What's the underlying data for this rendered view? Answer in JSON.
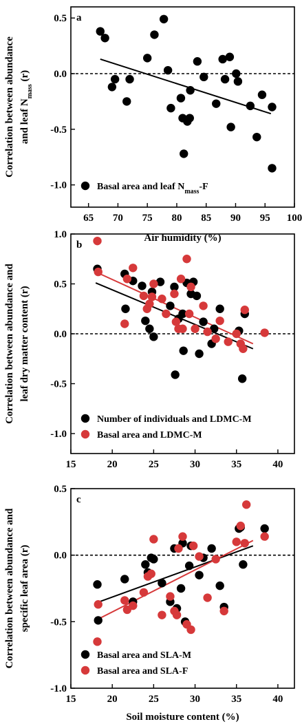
{
  "chart_data": [
    {
      "type": "scatter",
      "panel_label": "a",
      "xlabel": "Air humidity (%)",
      "ylabel_line1": "Correlation between abundance",
      "ylabel_line2_main": "and leaf N",
      "ylabel_line2_sub": "mass",
      "ylabel_line2_tail": " (r)",
      "xlim": [
        62,
        100
      ],
      "ylim": [
        -1.2,
        0.6
      ],
      "xticks": [
        65,
        70,
        75,
        80,
        85,
        90,
        95,
        100
      ],
      "yticks": [
        0.5,
        0.0,
        -0.5,
        -1.0
      ],
      "ytick_labels": [
        "0.5",
        "0.0",
        "-0.5",
        "-1.0"
      ],
      "reference_line_y": 0,
      "legend_position": "bottom-left",
      "series": [
        {
          "name_main": "Basal area and leaf N",
          "name_sub": "mass",
          "name_tail": "-F",
          "color": "#000000",
          "points": [
            [
              67,
              0.38
            ],
            [
              67.8,
              0.32
            ],
            [
              69,
              -0.12
            ],
            [
              69.5,
              -0.05
            ],
            [
              71.5,
              -0.25
            ],
            [
              72,
              -0.05
            ],
            [
              75,
              0.14
            ],
            [
              76.2,
              0.35
            ],
            [
              77.8,
              0.49
            ],
            [
              78.5,
              0.03
            ],
            [
              79,
              -0.31
            ],
            [
              80.7,
              -0.22
            ],
            [
              81,
              -0.4
            ],
            [
              81.2,
              -0.72
            ],
            [
              81.8,
              -0.43
            ],
            [
              82.2,
              -0.4
            ],
            [
              82.3,
              -0.15
            ],
            [
              83.5,
              0.11
            ],
            [
              84.6,
              -0.03
            ],
            [
              86.7,
              -0.27
            ],
            [
              87.8,
              0.13
            ],
            [
              88.2,
              -0.05
            ],
            [
              89,
              0.15
            ],
            [
              89.2,
              -0.48
            ],
            [
              90.1,
              0.0
            ],
            [
              90.4,
              -0.07
            ],
            [
              92.5,
              -0.29
            ],
            [
              93.6,
              -0.57
            ],
            [
              94.5,
              -0.19
            ],
            [
              96.2,
              -0.3
            ],
            [
              96.2,
              -0.85
            ]
          ],
          "fit": [
            [
              67,
              0.13
            ],
            [
              96,
              -0.36
            ]
          ]
        }
      ]
    },
    {
      "type": "scatter",
      "panel_label": "b",
      "xlabel": "",
      "ylabel_line1": "Correlation between abundance and",
      "ylabel_line2": "leaf dry matter content (r)",
      "xlim": [
        15,
        42
      ],
      "ylim": [
        -1.2,
        1.0
      ],
      "xticks": [
        15,
        20,
        25,
        30,
        35,
        40
      ],
      "yticks": [
        1.0,
        0.5,
        0.0,
        -0.5,
        -1.0
      ],
      "ytick_labels": [
        "1.0",
        "0.5",
        "0.0",
        "-0.5",
        "-1.0"
      ],
      "reference_line_y": 0,
      "legend_position": "bottom-left",
      "series": [
        {
          "name": "Number of individuals and LDMC-M",
          "color": "#000000",
          "points": [
            [
              18.2,
              0.65
            ],
            [
              21.5,
              0.6
            ],
            [
              21.6,
              0.25
            ],
            [
              22.5,
              0.53
            ],
            [
              23.6,
              0.48
            ],
            [
              24.0,
              0.13
            ],
            [
              24.5,
              0.05
            ],
            [
              24.8,
              0.42
            ],
            [
              25.0,
              -0.03
            ],
            [
              25.8,
              0.52
            ],
            [
              27.0,
              0.28
            ],
            [
              27.5,
              0.47
            ],
            [
              27.6,
              -0.41
            ],
            [
              28.0,
              0.15
            ],
            [
              28.5,
              0.2
            ],
            [
              28.6,
              -0.17
            ],
            [
              29.0,
              0.51
            ],
            [
              29.5,
              0.4
            ],
            [
              29.8,
              0.52
            ],
            [
              30.2,
              0.38
            ],
            [
              30.5,
              -0.2
            ],
            [
              31.0,
              0.12
            ],
            [
              32.0,
              -0.1
            ],
            [
              32.3,
              0.05
            ],
            [
              33.0,
              0.25
            ],
            [
              35.3,
              0.03
            ],
            [
              35.7,
              -0.45
            ],
            [
              36.0,
              0.2
            ]
          ],
          "fit": [
            [
              18,
              0.51
            ],
            [
              37,
              -0.15
            ]
          ]
        },
        {
          "name": "Basal area and LDMC-M",
          "color": "#d6393a",
          "points": [
            [
              18.2,
              0.93
            ],
            [
              18.3,
              0.62
            ],
            [
              21.5,
              0.1
            ],
            [
              21.8,
              0.55
            ],
            [
              22.5,
              0.66
            ],
            [
              23.8,
              0.38
            ],
            [
              24.2,
              0.25
            ],
            [
              24.5,
              0.3
            ],
            [
              24.8,
              0.37
            ],
            [
              25.0,
              0.5
            ],
            [
              26.0,
              0.35
            ],
            [
              26.5,
              0.2
            ],
            [
              27.5,
              0.4
            ],
            [
              27.7,
              0.12
            ],
            [
              28.0,
              0.05
            ],
            [
              28.3,
              0.55
            ],
            [
              28.5,
              0.05
            ],
            [
              29.0,
              0.75
            ],
            [
              29.3,
              0.2
            ],
            [
              29.5,
              0.47
            ],
            [
              30.0,
              0.05
            ],
            [
              31.0,
              0.28
            ],
            [
              31.5,
              0.02
            ],
            [
              32.5,
              -0.05
            ],
            [
              33.0,
              0.13
            ],
            [
              34.0,
              -0.08
            ],
            [
              35.0,
              0.0
            ],
            [
              35.5,
              -0.1
            ],
            [
              35.8,
              -0.15
            ],
            [
              36.0,
              0.24
            ],
            [
              38.4,
              0.01
            ]
          ],
          "fit": [
            [
              18,
              0.62
            ],
            [
              37,
              -0.1
            ]
          ]
        }
      ]
    },
    {
      "type": "scatter",
      "panel_label": "c",
      "xlabel": "Soil moisture content (%)",
      "ylabel_line1": "Correlation between abundance and",
      "ylabel_line2": "specific leaf area (r)",
      "xlim": [
        15,
        42
      ],
      "ylim": [
        -1.0,
        0.5
      ],
      "xticks": [
        15,
        20,
        25,
        30,
        35,
        40
      ],
      "yticks": [
        0.5,
        0.0,
        -0.5,
        -1.0
      ],
      "ytick_labels": [
        "0.5",
        "0.0",
        "-0.5",
        "-1.0"
      ],
      "reference_line_y": 0,
      "legend_position": "bottom-left",
      "series": [
        {
          "name": "Basal area and SLA-M",
          "color": "#000000",
          "points": [
            [
              18.2,
              -0.22
            ],
            [
              18.3,
              -0.49
            ],
            [
              21.5,
              -0.18
            ],
            [
              22.5,
              -0.35
            ],
            [
              24.0,
              -0.07
            ],
            [
              24.3,
              -0.13
            ],
            [
              24.7,
              -0.02
            ],
            [
              25.0,
              -0.03
            ],
            [
              26.0,
              -0.21
            ],
            [
              27.0,
              -0.35
            ],
            [
              27.5,
              0.05
            ],
            [
              27.8,
              -0.4
            ],
            [
              28.3,
              -0.25
            ],
            [
              28.5,
              0.09
            ],
            [
              28.8,
              -0.5
            ],
            [
              29.3,
              -0.08
            ],
            [
              29.5,
              0.07
            ],
            [
              30.5,
              -0.15
            ],
            [
              31.0,
              -0.02
            ],
            [
              32.0,
              0.05
            ],
            [
              33.0,
              -0.23
            ],
            [
              33.5,
              -0.39
            ],
            [
              35.3,
              0.2
            ],
            [
              35.5,
              0.21
            ],
            [
              35.8,
              -0.07
            ],
            [
              38.4,
              0.2
            ]
          ],
          "fit": [
            [
              18,
              -0.36
            ],
            [
              37,
              0.07
            ]
          ]
        },
        {
          "name": "Basal area and SLA-F",
          "color": "#d6393a",
          "points": [
            [
              18.2,
              -0.65
            ],
            [
              18.3,
              -0.37
            ],
            [
              21.5,
              -0.34
            ],
            [
              21.8,
              -0.41
            ],
            [
              22.5,
              -0.38
            ],
            [
              23.8,
              -0.28
            ],
            [
              24.3,
              -0.16
            ],
            [
              24.7,
              -0.14
            ],
            [
              25.0,
              0.12
            ],
            [
              26.0,
              -0.45
            ],
            [
              27.0,
              -0.31
            ],
            [
              27.5,
              -0.42
            ],
            [
              27.8,
              -0.45
            ],
            [
              28.0,
              0.05
            ],
            [
              28.5,
              0.14
            ],
            [
              29.0,
              -0.52
            ],
            [
              29.5,
              -0.56
            ],
            [
              29.8,
              0.07
            ],
            [
              30.5,
              -0.01
            ],
            [
              31.5,
              -0.32
            ],
            [
              32.5,
              -0.03
            ],
            [
              33.5,
              -0.42
            ],
            [
              35.0,
              0.1
            ],
            [
              35.5,
              0.22
            ],
            [
              36.0,
              0.09
            ],
            [
              36.2,
              0.38
            ],
            [
              38.4,
              0.14
            ]
          ],
          "fit": [
            [
              18,
              -0.49
            ],
            [
              37,
              0.11
            ]
          ]
        }
      ]
    }
  ]
}
